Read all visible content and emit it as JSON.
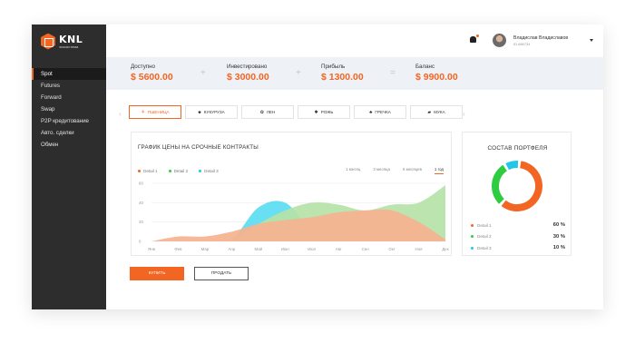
{
  "brand": {
    "title": "KNL",
    "subtitle": "экосистема"
  },
  "sidebar": {
    "items": [
      {
        "label": "Spot",
        "active": true
      },
      {
        "label": "Futures",
        "active": false
      },
      {
        "label": "Forward",
        "active": false
      },
      {
        "label": "Swap",
        "active": false
      },
      {
        "label": "P2P кредитование",
        "active": false
      },
      {
        "label": "Авто. сделки",
        "active": false
      },
      {
        "label": "Обмен",
        "active": false
      }
    ]
  },
  "header": {
    "notification_icon": "bell-icon",
    "user_name": "Владислав Владиславов",
    "user_id": "ID 686734",
    "menu_icon": "chevron-down-icon"
  },
  "stats": {
    "available": {
      "label": "Доступно",
      "value": "$ 5600.00"
    },
    "invested": {
      "label": "Инвестировано",
      "value": "$ 3000.00"
    },
    "profit": {
      "label": "Прибыль",
      "value": "$ 1300.00"
    },
    "balance": {
      "label": "Баланс",
      "value": "$ 9900.00"
    },
    "op_plus": "+",
    "op_equals": "="
  },
  "tabs": [
    {
      "label": "ПШЕНИЦА",
      "icon": "wheat-icon",
      "active": true
    },
    {
      "label": "КУКУРУЗА",
      "icon": "corn-icon",
      "active": false
    },
    {
      "label": "ЛЕН",
      "icon": "flax-icon",
      "active": false
    },
    {
      "label": "РОЖЬ",
      "icon": "rye-icon",
      "active": false
    },
    {
      "label": "ГРЕЧКА",
      "icon": "buckwheat-icon",
      "active": false
    },
    {
      "label": "МУКА",
      "icon": "flour-icon",
      "active": false
    }
  ],
  "chart_panel": {
    "periods": [
      "1 месяц",
      "3 месяца",
      "6 месяцев",
      "1 год"
    ],
    "active_period": "1 год"
  },
  "chart_data": {
    "type": "area",
    "title": "ГРАФИК ЦЕНЫ НА СРОЧНЫЕ КОНТРАКТЫ",
    "categories": [
      "Янв",
      "Фев",
      "Мар",
      "Апр",
      "Май",
      "Июн",
      "Июл",
      "Авг",
      "Сен",
      "Окт",
      "Ноя",
      "Дек"
    ],
    "yticks": [
      0,
      20,
      40,
      60
    ],
    "ylim": [
      0,
      60
    ],
    "grid": true,
    "legend_position": "top-left",
    "series": [
      {
        "name": "Detail 1",
        "color": "#f6b28f",
        "values": [
          0,
          5,
          5,
          10,
          18,
          22,
          25,
          30,
          32,
          32,
          20,
          2
        ]
      },
      {
        "name": "Detail 2",
        "color": "#b6e2a8",
        "values": [
          0,
          0,
          0,
          2,
          18,
          32,
          40,
          38,
          32,
          38,
          40,
          58
        ]
      },
      {
        "name": "Detail 3",
        "color": "#5bdcf2",
        "values": [
          0,
          0,
          0,
          2,
          35,
          40,
          12,
          0,
          0,
          0,
          0,
          0
        ]
      }
    ]
  },
  "portfolio": {
    "title": "СОСТАВ ПОРТФЕЛЯ",
    "items": [
      {
        "label": "Detail 1",
        "value": "60 %",
        "percent": 60,
        "color": "#f26522"
      },
      {
        "label": "Detail 2",
        "value": "30 %",
        "percent": 30,
        "color": "#2ecc40"
      },
      {
        "label": "Detail 3",
        "value": "10 %",
        "percent": 10,
        "color": "#21c6e8"
      }
    ]
  },
  "actions": {
    "buy_label": "КУПИТЬ",
    "sell_label": "ПРОДАТЬ"
  }
}
